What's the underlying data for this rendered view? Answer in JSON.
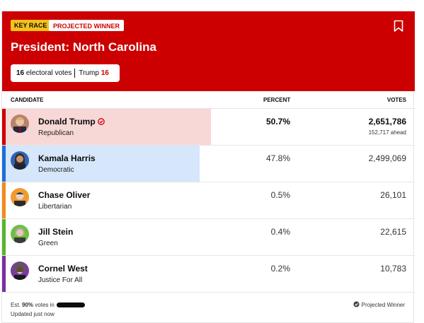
{
  "header": {
    "badges": {
      "key_race": "KEY RACE",
      "projected_winner": "PROJECTED WINNER"
    },
    "title": "President: North Carolina",
    "electoral": {
      "count": "16",
      "label": "electoral votes",
      "leader": "Trump",
      "leader_ev": "16"
    }
  },
  "columns": {
    "candidate": "CANDIDATE",
    "percent": "PERCENT",
    "votes": "VOTES"
  },
  "candidates": [
    {
      "name": "Donald Trump",
      "party": "Republican",
      "percent": "50.7%",
      "votes": "2,651,786",
      "ahead": "152,717 ahead",
      "winner": true,
      "color": "#cc0000",
      "fill_color": "#f8d7d7",
      "share": 50.7
    },
    {
      "name": "Kamala Harris",
      "party": "Democratic",
      "percent": "47.8%",
      "votes": "2,499,069",
      "color": "#1a6fd9",
      "fill_color": "#d6e6fb",
      "share": 47.8
    },
    {
      "name": "Chase Oliver",
      "party": "Libertarian",
      "percent": "0.5%",
      "votes": "26,101",
      "color": "#f08c1e"
    },
    {
      "name": "Jill Stein",
      "party": "Green",
      "percent": "0.4%",
      "votes": "22,615",
      "color": "#5ab42d"
    },
    {
      "name": "Cornel West",
      "party": "Justice For All",
      "percent": "0.2%",
      "votes": "10,783",
      "color": "#7b2fa0"
    }
  ],
  "footer": {
    "est_prefix": "Est.",
    "est_pct": "90%",
    "est_suffix": "votes in",
    "updated": "Updated just now",
    "legend": "Projected Winner"
  },
  "icons": {
    "bookmark": "bookmark-icon",
    "winner_check": "check-circle-icon"
  }
}
